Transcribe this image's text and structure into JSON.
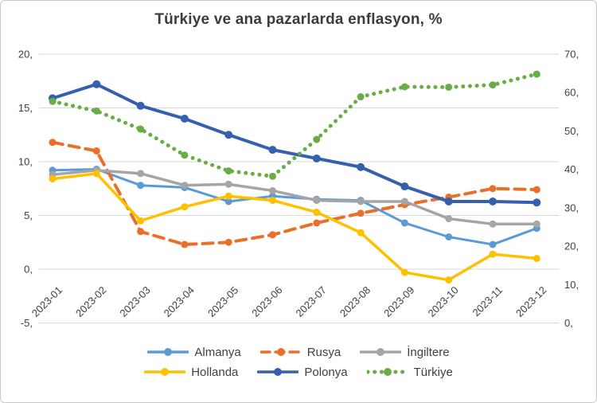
{
  "chart_data": {
    "type": "line",
    "title": "Türkiye ve ana pazarlarda enflasyon, %",
    "legend_position": "bottom",
    "grid": "horizontal",
    "categories": [
      "2023-01",
      "2023-02",
      "2023-03",
      "2023-04",
      "2023-05",
      "2023-06",
      "2023-07",
      "2023-08",
      "2023-09",
      "2023-10",
      "2023-11",
      "2023-12"
    ],
    "left_axis": {
      "min": -5,
      "max": 20,
      "tick_values": [
        20,
        15,
        10,
        5,
        0,
        -5
      ],
      "tick_labels": [
        "20,",
        "15,",
        "10,",
        "5,",
        "0,",
        "-5,"
      ]
    },
    "right_axis": {
      "min": 0,
      "max": 70,
      "tick_values": [
        70,
        60,
        50,
        40,
        30,
        20,
        10,
        0
      ],
      "tick_labels": [
        "70,",
        "60,",
        "50,",
        "40,",
        "30,",
        "20,",
        "10,",
        "0,"
      ]
    },
    "series": [
      {
        "name": "Almanya",
        "color": "#5B9BD5",
        "line_style": "solid",
        "marker": "circle",
        "axis": "left",
        "values": [
          9.2,
          9.3,
          7.8,
          7.6,
          6.3,
          6.8,
          6.5,
          6.4,
          4.3,
          3.0,
          2.3,
          3.8
        ]
      },
      {
        "name": "Rusya",
        "color": "#E8702A",
        "line_style": "dashed",
        "marker": "circle",
        "axis": "left",
        "values": [
          11.8,
          11.0,
          3.5,
          2.3,
          2.5,
          3.2,
          4.3,
          5.2,
          6.0,
          6.7,
          7.5,
          7.4
        ]
      },
      {
        "name": "İngiltere",
        "color": "#A5A5A5",
        "line_style": "solid",
        "marker": "circle",
        "axis": "left",
        "values": [
          8.8,
          9.2,
          8.9,
          7.8,
          7.9,
          7.3,
          6.4,
          6.3,
          6.3,
          4.7,
          4.2,
          4.2
        ]
      },
      {
        "name": "Hollanda",
        "color": "#FFC000",
        "line_style": "solid",
        "marker": "circle",
        "axis": "left",
        "values": [
          8.4,
          8.9,
          4.5,
          5.8,
          6.8,
          6.4,
          5.3,
          3.4,
          -0.3,
          -1.0,
          1.4,
          1.0
        ]
      },
      {
        "name": "Polonya",
        "color": "#3560AE",
        "line_style": "solid",
        "marker": "circle",
        "axis": "left",
        "values": [
          15.9,
          17.2,
          15.2,
          14.0,
          12.5,
          11.1,
          10.3,
          9.5,
          7.7,
          6.3,
          6.3,
          6.2
        ]
      },
      {
        "name": "Türkiye",
        "color": "#6AAD47",
        "line_style": "dotted",
        "marker": "circle",
        "axis": "right",
        "values": [
          57.7,
          55.2,
          50.5,
          43.7,
          39.6,
          38.2,
          47.8,
          58.9,
          61.5,
          61.4,
          62.0,
          64.8
        ]
      }
    ],
    "gridline_color": "#D9D9D9"
  }
}
